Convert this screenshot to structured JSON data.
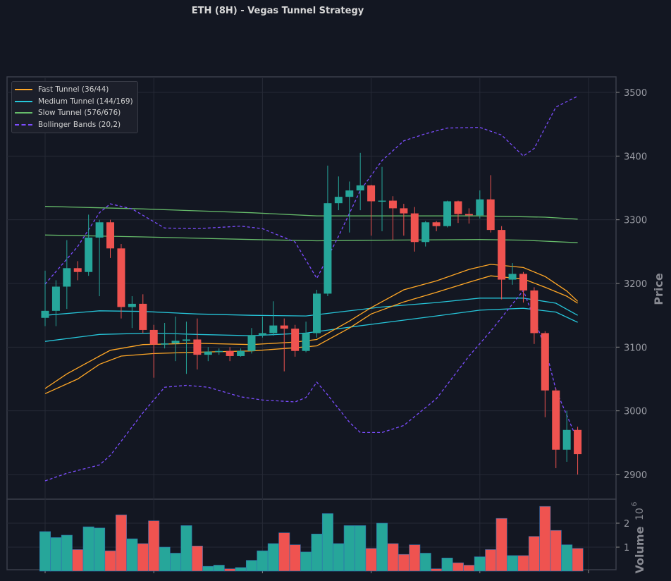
{
  "chart_data": {
    "type": "candlestick",
    "title": "ETH (8H) - Vegas Tunnel Strategy",
    "ylabel": "Price",
    "volume_label": "Volume",
    "volume_scale": "10",
    "volume_scale_exp": "6",
    "ylim": [
      2860,
      3525
    ],
    "yticks": [
      "2900",
      "3000",
      "3100",
      "3200",
      "3300",
      "3400",
      "3500"
    ],
    "volume_ylim": [
      0,
      2.9
    ],
    "volume_ticks": [
      "1",
      "2"
    ],
    "colors": {
      "up": "#26a69a",
      "down": "#ef5350",
      "fast": "#ffa726",
      "medium": "#26c6da",
      "slow": "#66bb6a",
      "bb": "#7c4dff",
      "grid": "#262a36",
      "bg": "#131722"
    },
    "legend": [
      {
        "label": "Fast Tunnel (36/44)",
        "color": "#ffa726",
        "dashed": false
      },
      {
        "label": "Medium Tunnel (144/169)",
        "color": "#26c6da",
        "dashed": false
      },
      {
        "label": "Slow Tunnel (576/676)",
        "color": "#66bb6a",
        "dashed": false
      },
      {
        "label": "Bollinger Bands (20,2)",
        "color": "#7c4dff",
        "dashed": true
      }
    ],
    "candles": [
      [
        3146,
        3157,
        3220,
        3133
      ],
      [
        3157,
        3195,
        3205,
        3133
      ],
      [
        3195,
        3224,
        3268,
        3160
      ],
      [
        3224,
        3218,
        3235,
        3205
      ],
      [
        3218,
        3272,
        3308,
        3212
      ],
      [
        3272,
        3296,
        3300,
        3180
      ],
      [
        3296,
        3255,
        3300,
        3240
      ],
      [
        3255,
        3163,
        3262,
        3145
      ],
      [
        3163,
        3168,
        3180,
        3130
      ],
      [
        3168,
        3127,
        3183,
        3122
      ],
      [
        3127,
        3104,
        3135,
        3052
      ],
      [
        3104,
        3106,
        3138,
        3098
      ],
      [
        3106,
        3110,
        3148,
        3078
      ],
      [
        3110,
        3112,
        3140,
        3058
      ],
      [
        3112,
        3088,
        3145,
        3065
      ],
      [
        3088,
        3093,
        3100,
        3078
      ],
      [
        3093,
        3094,
        3098,
        3088
      ],
      [
        3094,
        3086,
        3100,
        3078
      ],
      [
        3086,
        3094,
        3098,
        3085
      ],
      [
        3094,
        3119,
        3130,
        3090
      ],
      [
        3119,
        3122,
        3148,
        3115
      ],
      [
        3122,
        3134,
        3172,
        3118
      ],
      [
        3134,
        3129,
        3145,
        3062
      ],
      [
        3129,
        3094,
        3135,
        3085
      ],
      [
        3094,
        3122,
        3140,
        3092
      ],
      [
        3122,
        3184,
        3190,
        3115
      ],
      [
        3184,
        3326,
        3385,
        3180
      ],
      [
        3326,
        3336,
        3368,
        3315
      ],
      [
        3336,
        3346,
        3360,
        3280
      ],
      [
        3346,
        3354,
        3405,
        3315
      ],
      [
        3354,
        3329,
        3355,
        3275
      ],
      [
        3329,
        3330,
        3383,
        3282
      ],
      [
        3330,
        3318,
        3337,
        3268
      ],
      [
        3318,
        3310,
        3325,
        3275
      ],
      [
        3310,
        3265,
        3320,
        3250
      ],
      [
        3265,
        3296,
        3298,
        3258
      ],
      [
        3296,
        3290,
        3298,
        3282
      ],
      [
        3290,
        3329,
        3330,
        3288
      ],
      [
        3329,
        3309,
        3330,
        3295
      ],
      [
        3309,
        3307,
        3318,
        3294
      ],
      [
        3307,
        3332,
        3346,
        3302
      ],
      [
        3332,
        3284,
        3370,
        3280
      ],
      [
        3284,
        3206,
        3290,
        3175
      ],
      [
        3206,
        3215,
        3232,
        3198
      ],
      [
        3215,
        3189,
        3218,
        3170
      ],
      [
        3189,
        3122,
        3194,
        3105
      ],
      [
        3122,
        3032,
        3125,
        2990
      ],
      [
        3032,
        2939,
        3035,
        2910
      ],
      [
        2939,
        2970,
        3000,
        2920
      ],
      [
        2970,
        2932,
        2975,
        2900
      ]
    ],
    "volume": [
      1.65,
      1.4,
      1.5,
      0.9,
      1.85,
      1.8,
      0.85,
      2.35,
      1.35,
      1.15,
      2.1,
      1.0,
      0.75,
      1.9,
      1.05,
      0.2,
      0.25,
      0.1,
      0.15,
      0.45,
      0.85,
      1.15,
      1.6,
      1.1,
      0.8,
      1.55,
      2.4,
      1.15,
      1.9,
      1.9,
      0.95,
      2.0,
      1.15,
      0.7,
      1.1,
      0.75,
      0.1,
      0.55,
      0.35,
      0.25,
      0.6,
      0.9,
      2.2,
      0.65,
      0.65,
      1.45,
      2.7,
      1.7,
      1.1,
      0.95
    ],
    "lines": {
      "fast_upper": [
        [
          0,
          3035
        ],
        [
          2,
          3058
        ],
        [
          5,
          3086
        ],
        [
          6,
          3095
        ],
        [
          9,
          3104
        ],
        [
          14,
          3106
        ],
        [
          19,
          3104
        ],
        [
          23,
          3108
        ],
        [
          25,
          3112
        ],
        [
          28,
          3141
        ],
        [
          30,
          3162
        ],
        [
          33,
          3190
        ],
        [
          36,
          3204
        ],
        [
          39,
          3222
        ],
        [
          41,
          3230
        ],
        [
          44,
          3225
        ],
        [
          46,
          3211
        ],
        [
          48,
          3188
        ],
        [
          49,
          3172
        ]
      ],
      "fast_lower": [
        [
          0,
          3027
        ],
        [
          3,
          3050
        ],
        [
          5,
          3073
        ],
        [
          7,
          3086
        ],
        [
          10,
          3090
        ],
        [
          14,
          3092
        ],
        [
          19,
          3094
        ],
        [
          23,
          3099
        ],
        [
          25,
          3102
        ],
        [
          28,
          3130
        ],
        [
          30,
          3152
        ],
        [
          33,
          3171
        ],
        [
          36,
          3186
        ],
        [
          39,
          3202
        ],
        [
          41,
          3212
        ],
        [
          44,
          3207
        ],
        [
          46,
          3194
        ],
        [
          48,
          3180
        ],
        [
          49,
          3169
        ]
      ],
      "medium_upper": [
        [
          0,
          3150
        ],
        [
          5,
          3157
        ],
        [
          9,
          3156
        ],
        [
          14,
          3152
        ],
        [
          19,
          3150
        ],
        [
          24,
          3149
        ],
        [
          27,
          3155
        ],
        [
          31,
          3163
        ],
        [
          36,
          3170
        ],
        [
          40,
          3177
        ],
        [
          44,
          3177
        ],
        [
          47,
          3169
        ],
        [
          49,
          3150
        ]
      ],
      "medium_lower": [
        [
          0,
          3109
        ],
        [
          5,
          3120
        ],
        [
          10,
          3122
        ],
        [
          14,
          3120
        ],
        [
          19,
          3118
        ],
        [
          24,
          3122
        ],
        [
          27,
          3129
        ],
        [
          31,
          3138
        ],
        [
          36,
          3149
        ],
        [
          40,
          3158
        ],
        [
          44,
          3161
        ],
        [
          47,
          3155
        ],
        [
          49,
          3139
        ]
      ],
      "slow_upper": [
        [
          0,
          3321
        ],
        [
          9,
          3317
        ],
        [
          19,
          3311
        ],
        [
          25,
          3306
        ],
        [
          31,
          3306
        ],
        [
          40,
          3306
        ],
        [
          46,
          3304
        ],
        [
          49,
          3301
        ]
      ],
      "slow_lower": [
        [
          0,
          3276
        ],
        [
          9,
          3273
        ],
        [
          19,
          3269
        ],
        [
          25,
          3267
        ],
        [
          31,
          3268
        ],
        [
          40,
          3269
        ],
        [
          44,
          3268
        ],
        [
          49,
          3264
        ]
      ],
      "bb_upper": [
        [
          0,
          3199
        ],
        [
          3,
          3258
        ],
        [
          5,
          3311
        ],
        [
          6,
          3325
        ],
        [
          8,
          3317
        ],
        [
          11,
          3287
        ],
        [
          14,
          3286
        ],
        [
          18,
          3290
        ],
        [
          20,
          3286
        ],
        [
          23,
          3265
        ],
        [
          25,
          3208
        ],
        [
          27,
          3274
        ],
        [
          29,
          3346
        ],
        [
          31,
          3393
        ],
        [
          33,
          3424
        ],
        [
          35,
          3435
        ],
        [
          37,
          3444
        ],
        [
          40,
          3445
        ],
        [
          42,
          3433
        ],
        [
          44,
          3400
        ],
        [
          45,
          3412
        ],
        [
          47,
          3477
        ],
        [
          49,
          3494
        ]
      ],
      "bb_lower": [
        [
          0,
          2890
        ],
        [
          2,
          2902
        ],
        [
          5,
          2915
        ],
        [
          6,
          2930
        ],
        [
          9,
          2997
        ],
        [
          11,
          3037
        ],
        [
          13,
          3040
        ],
        [
          15,
          3037
        ],
        [
          18,
          3022
        ],
        [
          20,
          3017
        ],
        [
          23,
          3014
        ],
        [
          24,
          3021
        ],
        [
          25,
          3045
        ],
        [
          26,
          3025
        ],
        [
          28,
          2982
        ],
        [
          29,
          2966
        ],
        [
          31,
          2966
        ],
        [
          33,
          2977
        ],
        [
          36,
          3019
        ],
        [
          39,
          3086
        ],
        [
          41,
          3125
        ],
        [
          44,
          3189
        ],
        [
          46,
          3100
        ],
        [
          47,
          3033
        ],
        [
          49,
          2953
        ]
      ]
    }
  }
}
